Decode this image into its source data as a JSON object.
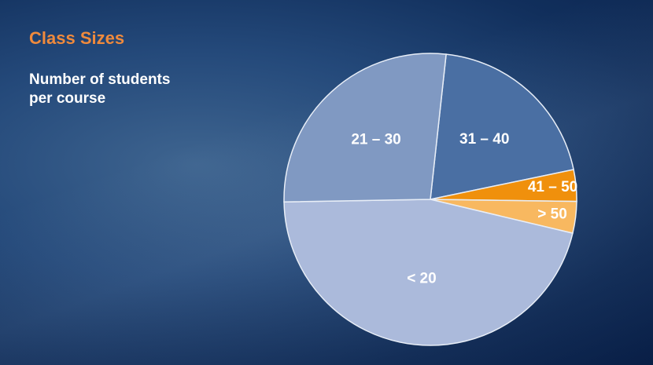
{
  "chart_data": {
    "type": "pie",
    "title": "Class Sizes",
    "subtitle": "Number of students per course",
    "categories": [
      "31 – 40",
      "41 – 50",
      "> 50",
      "< 20",
      "21 – 30"
    ],
    "values": [
      20,
      3.5,
      3.5,
      46,
      27
    ],
    "colors": [
      "#4a6fa3",
      "#f0900c",
      "#f8b860",
      "#abbadb",
      "#8099c2"
    ]
  }
}
